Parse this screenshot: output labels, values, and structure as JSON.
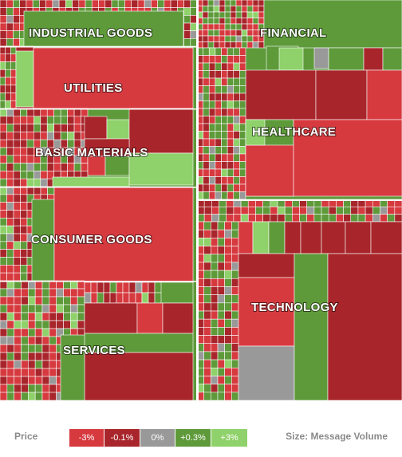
{
  "chart_data": {
    "type": "heatmap",
    "subtype": "treemap",
    "size_metric": "Message Volume",
    "color_metric": "Price",
    "sectors": [
      {
        "name": "INDUSTRIAL GOODS"
      },
      {
        "name": "UTILITIES"
      },
      {
        "name": "BASIC MATERIALS"
      },
      {
        "name": "CONSUMER GOODS"
      },
      {
        "name": "SERVICES"
      },
      {
        "name": "FINANCIAL"
      },
      {
        "name": "HEALTHCARE"
      },
      {
        "name": "TECHNOLOGY"
      }
    ]
  },
  "legend": {
    "price_label": "Price",
    "size_label": "Size: Message Volume",
    "scale": [
      {
        "label": "-3%",
        "color": "#d63a3f"
      },
      {
        "label": "-0.1%",
        "color": "#a8262b"
      },
      {
        "label": "0%",
        "color": "#999999"
      },
      {
        "label": "+0.3%",
        "color": "#5e9a3a"
      },
      {
        "label": "+3%",
        "color": "#8fd16a"
      }
    ]
  },
  "colors": {
    "strong_down": "#d63a3f",
    "down": "#a8262b",
    "flat": "#999999",
    "up": "#5e9a3a",
    "strong_up": "#8fd16a"
  }
}
